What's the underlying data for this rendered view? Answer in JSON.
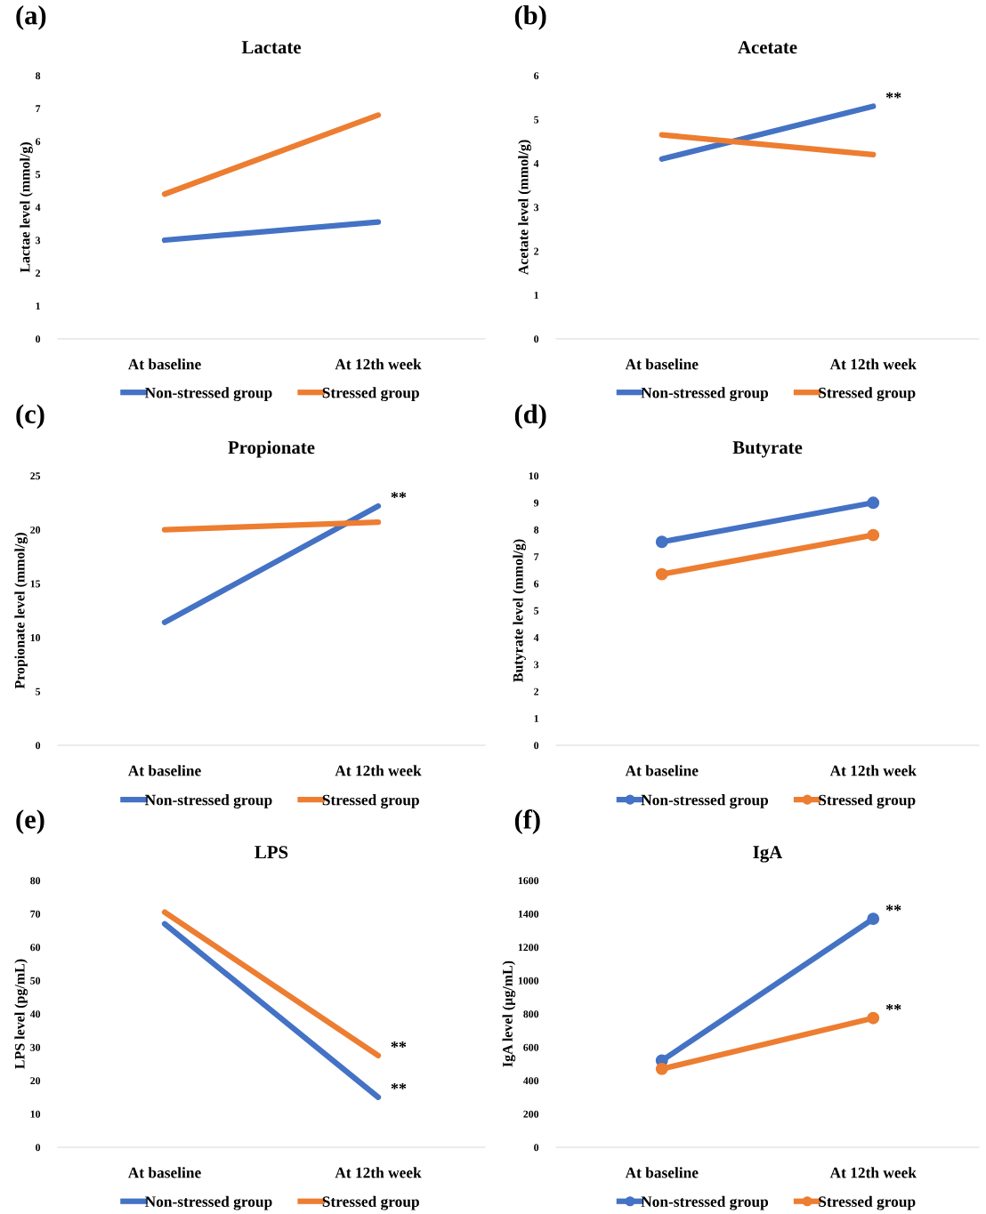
{
  "chart_data": [
    {
      "type": "line",
      "title": "Lactate",
      "ylabel": "Lactae level (mmol/g)",
      "categories": [
        "At baseline",
        "At 12th week"
      ],
      "ylim": [
        0,
        8
      ],
      "yticks": [
        0,
        1,
        2,
        3,
        4,
        5,
        6,
        7,
        8
      ],
      "grid": false,
      "legend": "bottom",
      "marker": "none",
      "series": [
        {
          "name": "Non-stressed group",
          "color": "#4472c4",
          "values": [
            3.0,
            3.55
          ]
        },
        {
          "name": "Stressed group",
          "color": "#ed7d31",
          "values": [
            4.4,
            6.8
          ]
        }
      ],
      "annotations": [
        "(a)"
      ]
    },
    {
      "type": "line",
      "title": "Acetate",
      "ylabel": "Acetate level (mmol/g)",
      "categories": [
        "At baseline",
        "At 12th week"
      ],
      "ylim": [
        0,
        6
      ],
      "yticks": [
        0,
        1,
        2,
        3,
        4,
        5,
        6
      ],
      "grid": false,
      "legend": "bottom",
      "marker": "none",
      "series": [
        {
          "name": "Non-stressed group",
          "color": "#4472c4",
          "values": [
            4.1,
            5.3
          ]
        },
        {
          "name": "Stressed group",
          "color": "#ed7d31",
          "values": [
            4.65,
            4.2
          ]
        }
      ],
      "annotations": [
        "(b)",
        {
          "text": "**",
          "x": "At 12th week",
          "y": 5.3
        }
      ]
    },
    {
      "type": "line",
      "title": "Propionate",
      "ylabel": "Propionate level (mmol/g)",
      "categories": [
        "At baseline",
        "At 12th week"
      ],
      "ylim": [
        0,
        25
      ],
      "yticks": [
        0,
        5,
        10,
        15,
        20,
        25
      ],
      "grid": false,
      "legend": "bottom",
      "marker": "none",
      "series": [
        {
          "name": "Non-stressed group",
          "color": "#4472c4",
          "values": [
            11.4,
            22.2
          ]
        },
        {
          "name": "Stressed group",
          "color": "#ed7d31",
          "values": [
            20.0,
            20.7
          ]
        }
      ],
      "annotations": [
        "(c)",
        {
          "text": "**",
          "x": "At 12th week",
          "y": 22.2
        }
      ]
    },
    {
      "type": "line",
      "title": "Butyrate",
      "ylabel": "Butyrate level (mmol/g)",
      "categories": [
        "At baseline",
        "At 12th week"
      ],
      "ylim": [
        0,
        10
      ],
      "yticks": [
        0,
        1,
        2,
        3,
        4,
        5,
        6,
        7,
        8,
        9,
        10
      ],
      "grid": false,
      "legend": "bottom",
      "marker": "circle",
      "series": [
        {
          "name": "Non-stressed group",
          "color": "#4472c4",
          "values": [
            7.55,
            9.0
          ]
        },
        {
          "name": "Stressed group",
          "color": "#ed7d31",
          "values": [
            6.35,
            7.8
          ]
        }
      ],
      "annotations": [
        "(d)"
      ]
    },
    {
      "type": "line",
      "title": "LPS",
      "ylabel": "LPS level (pg/mL)",
      "categories": [
        "At baseline",
        "At 12th week"
      ],
      "ylim": [
        0,
        80
      ],
      "yticks": [
        0,
        10,
        20,
        30,
        40,
        50,
        60,
        70,
        80
      ],
      "grid": false,
      "legend": "bottom",
      "marker": "none",
      "series": [
        {
          "name": "Non-stressed group",
          "color": "#4472c4",
          "values": [
            67,
            15
          ]
        },
        {
          "name": "Stressed group",
          "color": "#ed7d31",
          "values": [
            70.5,
            27.5
          ]
        }
      ],
      "annotations": [
        "(e)",
        {
          "text": "**",
          "x": "At 12th week",
          "y": 27.5
        },
        {
          "text": "**",
          "x": "At 12th week",
          "y": 15
        }
      ]
    },
    {
      "type": "line",
      "title": "IgA",
      "ylabel": "IgA level (µg/mL)",
      "categories": [
        "At baseline",
        "At 12th week"
      ],
      "ylim": [
        0,
        1600
      ],
      "yticks": [
        0,
        200,
        400,
        600,
        800,
        1000,
        1200,
        1400,
        1600
      ],
      "grid": false,
      "legend": "bottom",
      "marker": "circle",
      "series": [
        {
          "name": "Non-stressed group",
          "color": "#4472c4",
          "values": [
            520,
            1370
          ]
        },
        {
          "name": "Stressed group",
          "color": "#ed7d31",
          "values": [
            470,
            775
          ]
        }
      ],
      "annotations": [
        "(f)",
        {
          "text": "**",
          "x": "At 12th week",
          "y": 1370
        },
        {
          "text": "**",
          "x": "At 12th week",
          "y": 775
        }
      ]
    }
  ]
}
